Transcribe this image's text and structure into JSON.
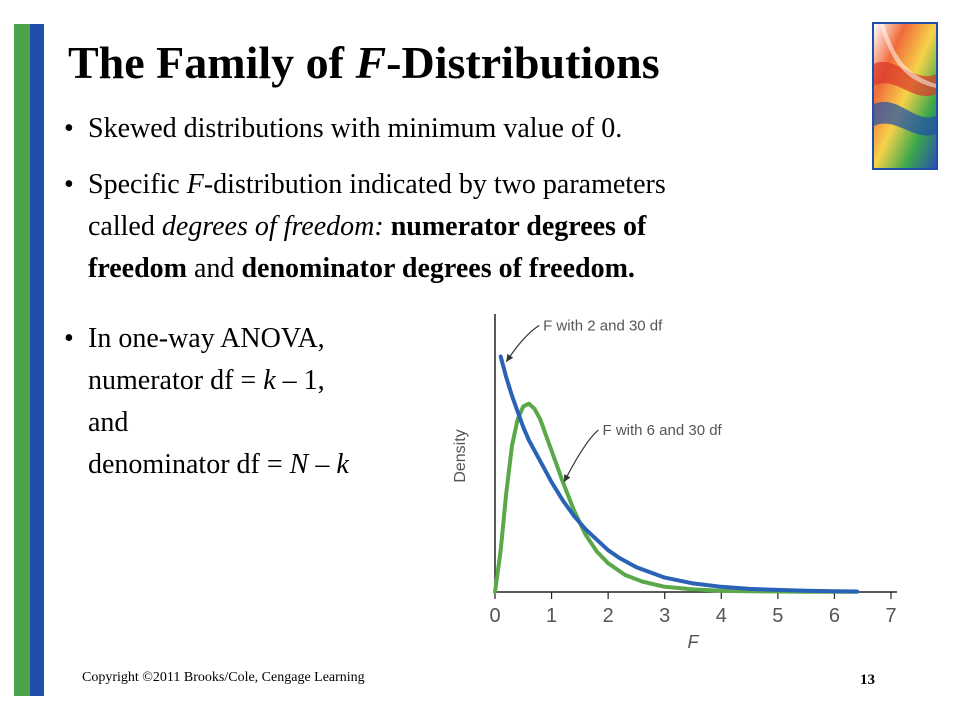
{
  "slide": {
    "title_pre": "The Family of ",
    "title_var": "F",
    "title_post": "-Distributions",
    "bullets": [
      {
        "text": "Skewed distributions with minimum value of 0."
      },
      {
        "line1_a": "Specific ",
        "line1_var": "F",
        "line1_b": "-distribution indicated by two parameters",
        "line2_a": "called ",
        "line2_italic": "degrees of freedom:",
        "line2_bold": "numerator degrees of",
        "line3_bold1": "freedom",
        "line3_mid": " and ",
        "line3_bold2": "denominator degrees of freedom."
      },
      {
        "line1": "In one-way ANOVA,",
        "line2_a": "numerator df = ",
        "line2_var": "k",
        "line2_b": " – 1,",
        "line3": "and",
        "line4_a": "denominator df = ",
        "line4_var1": "N",
        "line4_b": " – ",
        "line4_var2": "k"
      }
    ],
    "footer": "Copyright ©2011 Brooks/Cole, Cengage Learning",
    "page_number": "13"
  },
  "chart_data": {
    "type": "line",
    "xlabel": "F",
    "ylabel": "Density",
    "xlim": [
      0,
      7
    ],
    "ylim": [
      0,
      1.04
    ],
    "x_ticks": [
      0,
      1,
      2,
      3,
      4,
      5,
      6,
      7
    ],
    "series": [
      {
        "name": "F with 2 and 30 df",
        "color": "#2a62b5",
        "x": [
          0.1,
          0.2,
          0.3,
          0.4,
          0.5,
          0.6,
          0.8,
          1.0,
          1.2,
          1.4,
          1.6,
          1.8,
          2.0,
          2.2,
          2.5,
          3.0,
          3.5,
          4.0,
          4.5,
          5.0,
          5.5,
          6.0,
          6.4
        ],
        "y": [
          0.9,
          0.82,
          0.75,
          0.69,
          0.63,
          0.58,
          0.5,
          0.42,
          0.35,
          0.29,
          0.24,
          0.2,
          0.16,
          0.13,
          0.095,
          0.055,
          0.033,
          0.02,
          0.012,
          0.008,
          0.005,
          0.003,
          0.002
        ]
      },
      {
        "name": "F with 6 and 30 df",
        "color": "#5aa84a",
        "x": [
          0,
          0.1,
          0.2,
          0.3,
          0.4,
          0.5,
          0.6,
          0.7,
          0.8,
          0.9,
          1.0,
          1.2,
          1.4,
          1.6,
          1.8,
          2.0,
          2.3,
          2.6,
          3.0,
          3.5,
          4.0,
          4.5,
          5.0,
          5.5,
          6.0,
          6.4
        ],
        "y": [
          0,
          0.16,
          0.38,
          0.56,
          0.66,
          0.71,
          0.72,
          0.7,
          0.66,
          0.6,
          0.54,
          0.42,
          0.31,
          0.22,
          0.155,
          0.11,
          0.065,
          0.04,
          0.02,
          0.01,
          0.005,
          0.003,
          0.002,
          0.001,
          0.001,
          0.001
        ]
      }
    ],
    "annotations": [
      {
        "text": "F with 2 and 30 df",
        "series": 0
      },
      {
        "text": "F with 6 and 30 df",
        "series": 1
      }
    ]
  }
}
